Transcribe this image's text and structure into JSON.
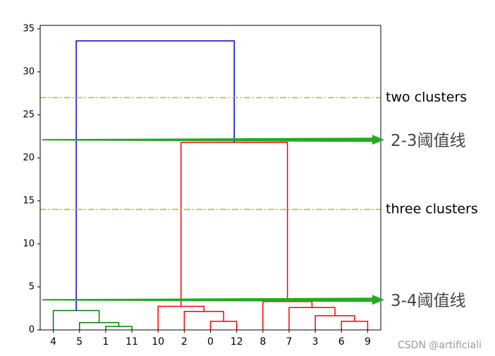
{
  "chart_data": {
    "type": "dendrogram",
    "xlim": [
      0,
      130
    ],
    "xticks": [
      {
        "value": 5,
        "label": "4"
      },
      {
        "value": 15,
        "label": "5"
      },
      {
        "value": 25,
        "label": "1"
      },
      {
        "value": 35,
        "label": "11"
      },
      {
        "value": 45,
        "label": "10"
      },
      {
        "value": 55,
        "label": "2"
      },
      {
        "value": 65,
        "label": "0"
      },
      {
        "value": 75,
        "label": "12"
      },
      {
        "value": 85,
        "label": "8"
      },
      {
        "value": 95,
        "label": "7"
      },
      {
        "value": 105,
        "label": "3"
      },
      {
        "value": 115,
        "label": "6"
      },
      {
        "value": 125,
        "label": "9"
      }
    ],
    "ylim": [
      0,
      35.4
    ],
    "yticks": [
      0,
      5,
      10,
      15,
      20,
      25,
      30,
      35
    ],
    "links": [
      {
        "x": [
          25,
          25,
          35,
          35
        ],
        "y": [
          0,
          0.4,
          0.4,
          0
        ],
        "color": "#008000"
      },
      {
        "x": [
          15,
          15,
          30,
          30
        ],
        "y": [
          0,
          0.85,
          0.85,
          0.4
        ],
        "color": "#008000"
      },
      {
        "x": [
          5,
          5,
          22.5,
          22.5
        ],
        "y": [
          0,
          2.25,
          2.25,
          0.85
        ],
        "color": "#008000"
      },
      {
        "x": [
          65,
          65,
          75,
          75
        ],
        "y": [
          0,
          1,
          1,
          0
        ],
        "color": "#ff0000"
      },
      {
        "x": [
          55,
          55,
          70,
          70
        ],
        "y": [
          0,
          2.15,
          2.15,
          1
        ],
        "color": "#ff0000"
      },
      {
        "x": [
          45,
          45,
          62.5,
          62.5
        ],
        "y": [
          0,
          2.75,
          2.75,
          2.15
        ],
        "color": "#ff0000"
      },
      {
        "x": [
          115,
          115,
          125,
          125
        ],
        "y": [
          0,
          1,
          1,
          0
        ],
        "color": "#ff0000"
      },
      {
        "x": [
          105,
          105,
          120,
          120
        ],
        "y": [
          0,
          1.65,
          1.65,
          1
        ],
        "color": "#ff0000"
      },
      {
        "x": [
          95,
          95,
          112.5,
          112.5
        ],
        "y": [
          0,
          2.6,
          2.6,
          1.65
        ],
        "color": "#ff0000"
      },
      {
        "x": [
          85,
          85,
          103.75,
          103.75
        ],
        "y": [
          0,
          3.3,
          3.3,
          2.6
        ],
        "color": "#ff0000"
      },
      {
        "x": [
          53.75,
          53.75,
          94.375,
          94.375
        ],
        "y": [
          2.75,
          21.8,
          21.8,
          3.3
        ],
        "color": "#ff0000"
      },
      {
        "x": [
          13.75,
          13.75,
          74.0625,
          74.0625
        ],
        "y": [
          2.25,
          33.6,
          33.6,
          21.8
        ],
        "color": "#0000cc"
      }
    ],
    "hlines": [
      {
        "y": 27,
        "label": "two clusters",
        "color": "#bfbf00"
      },
      {
        "y": 14,
        "label": "three clusters",
        "color": "#bfbf00"
      }
    ],
    "arrows": [
      {
        "y": 22.1,
        "label": "2-3阈值线",
        "color": "#22aa22"
      },
      {
        "y": 3.5,
        "label": "3-4阈值线",
        "color": "#22aa22"
      }
    ],
    "watermark": "CSDN @artificiali"
  }
}
